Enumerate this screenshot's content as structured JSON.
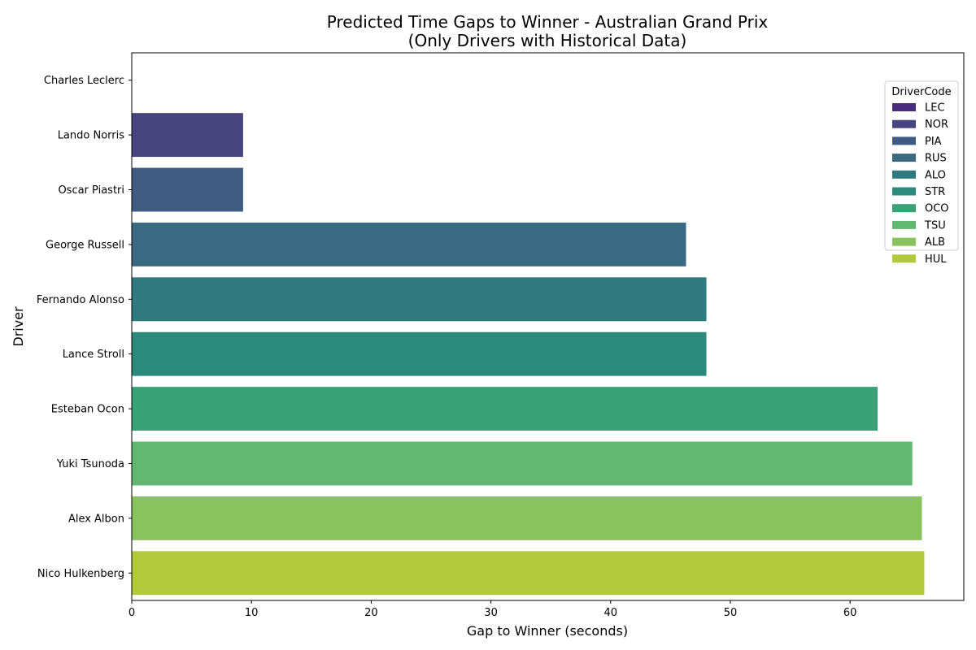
{
  "chart_data": {
    "type": "bar",
    "orientation": "horizontal",
    "title_lines": [
      "Predicted Time Gaps to Winner - Australian Grand Prix",
      "(Only Drivers with Historical Data)"
    ],
    "xlabel": "Gap to Winner (seconds)",
    "ylabel": "Driver",
    "xlim": [
      0,
      69.5
    ],
    "xticks": [
      0,
      10,
      20,
      30,
      40,
      50,
      60
    ],
    "grid": false,
    "categories": [
      "Charles Leclerc",
      "Lando Norris",
      "Oscar Piastri",
      "George Russell",
      "Fernando Alonso",
      "Lance Stroll",
      "Esteban Ocon",
      "Yuki Tsunoda",
      "Alex Albon",
      "Nico Hulkenberg"
    ],
    "values": [
      0.0,
      9.3,
      9.3,
      46.3,
      48.0,
      48.0,
      62.3,
      65.2,
      66.0,
      66.2
    ],
    "codes": [
      "LEC",
      "NOR",
      "PIA",
      "RUS",
      "ALO",
      "STR",
      "OCO",
      "TSU",
      "ALB",
      "HUL"
    ],
    "colors": [
      "#472d7b",
      "#46457f",
      "#3f5b84",
      "#3a6a82",
      "#2f7a7f",
      "#2c8a7c",
      "#3aa177",
      "#62b771",
      "#8ac35e",
      "#b2c93c"
    ],
    "legend": {
      "title": "DriverCode",
      "placement": "top-right"
    }
  }
}
